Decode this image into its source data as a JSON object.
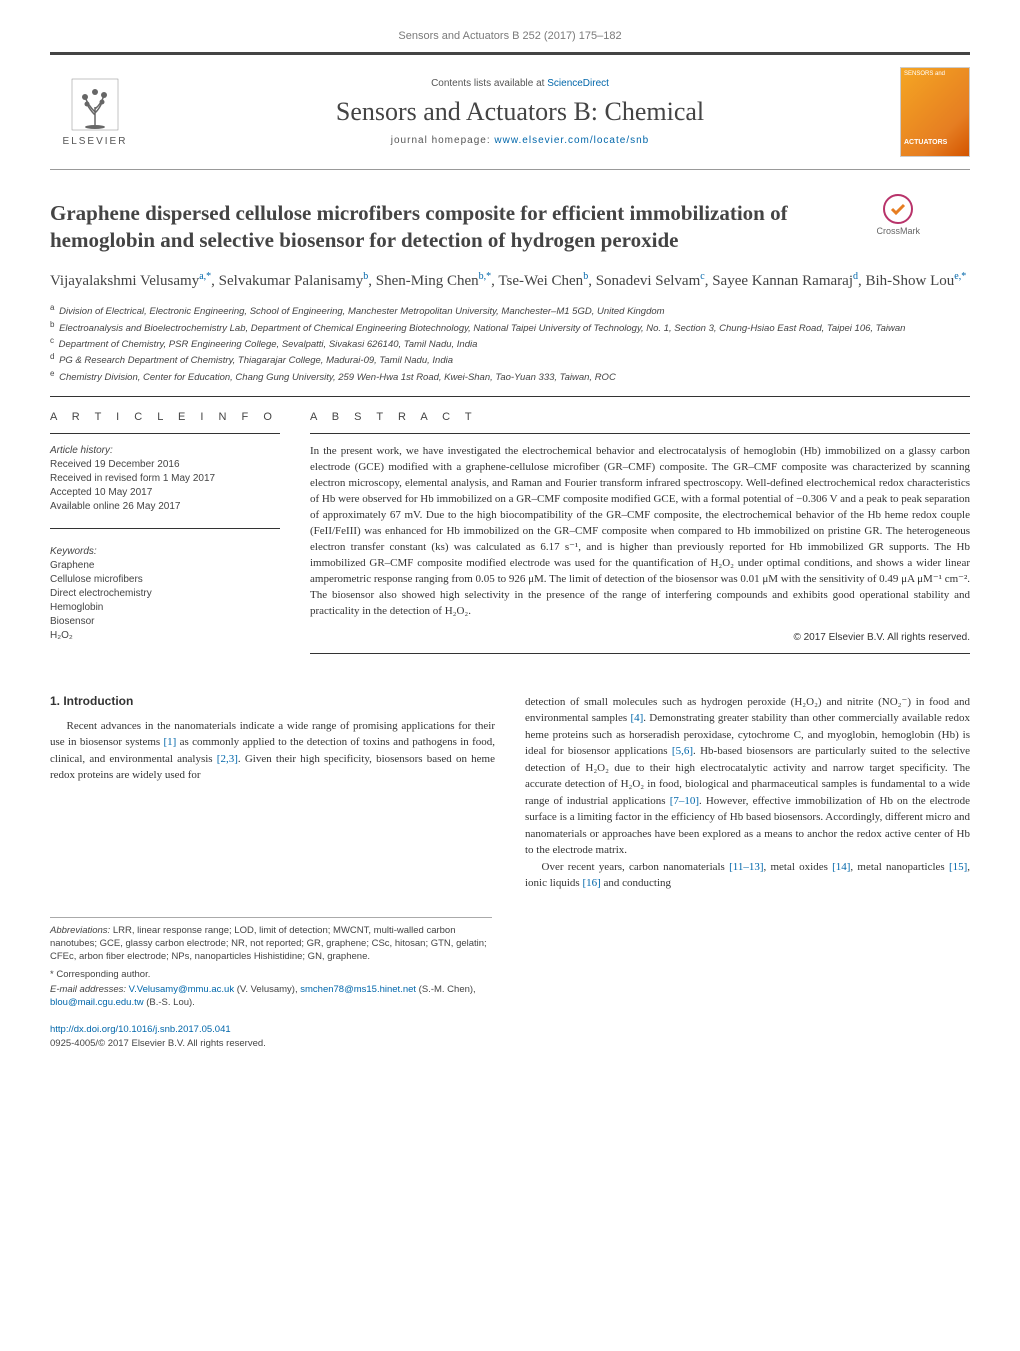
{
  "header": {
    "journal_ref": "Sensors and Actuators B 252 (2017) 175–182",
    "contents_label": "Contents lists available at ",
    "contents_link": "ScienceDirect",
    "journal_title": "Sensors and Actuators B: Chemical",
    "homepage_label": "journal homepage: ",
    "homepage_link": "www.elsevier.com/locate/snb",
    "publisher_name": "ELSEVIER",
    "cover_top_text": "SENSORS and",
    "cover_mid_text": "ACTUATORS",
    "crossmark_label": "CrossMark"
  },
  "article": {
    "title": "Graphene dispersed cellulose microfibers composite for efficient immobilization of hemoglobin and selective biosensor for detection of hydrogen peroxide",
    "authors_html": "Vijayalakshmi Velusamy<sup>a,*</sup>, Selvakumar Palanisamy<sup>b</sup>, Shen-Ming Chen<sup>b,*</sup>, Tse-Wei Chen<sup>b</sup>, Sonadevi Selvam<sup>c</sup>, Sayee Kannan Ramaraj<sup>d</sup>, Bih-Show Lou<sup>e,*</sup>",
    "affiliations": [
      {
        "sup": "a",
        "text": "Division of Electrical, Electronic Engineering, School of Engineering, Manchester Metropolitan University, Manchester–M1 5GD, United Kingdom"
      },
      {
        "sup": "b",
        "text": "Electroanalysis and Bioelectrochemistry Lab, Department of Chemical Engineering Biotechnology, National Taipei University of Technology, No. 1, Section 3, Chung-Hsiao East Road, Taipei 106, Taiwan"
      },
      {
        "sup": "c",
        "text": "Department of Chemistry, PSR Engineering College, Sevalpatti, Sivakasi 626140, Tamil Nadu, India"
      },
      {
        "sup": "d",
        "text": "PG & Research Department of Chemistry, Thiagarajar College, Madurai-09, Tamil Nadu, India"
      },
      {
        "sup": "e",
        "text": "Chemistry Division, Center for Education, Chang Gung University, 259 Wen-Hwa 1st Road, Kwei-Shan, Tao-Yuan 333, Taiwan, ROC"
      }
    ]
  },
  "info": {
    "label": "A R T I C L E   I N F O",
    "history_title": "Article history:",
    "history": [
      "Received 19 December 2016",
      "Received in revised form 1 May 2017",
      "Accepted 10 May 2017",
      "Available online 26 May 2017"
    ],
    "keywords_title": "Keywords:",
    "keywords": [
      "Graphene",
      "Cellulose microfibers",
      "Direct electrochemistry",
      "Hemoglobin",
      "Biosensor",
      "H₂O₂"
    ]
  },
  "abstract": {
    "label": "A B S T R A C T",
    "text": "In the present work, we have investigated the electrochemical behavior and electrocatalysis of hemoglobin (Hb) immobilized on a glassy carbon electrode (GCE) modified with a graphene-cellulose microfiber (GR–CMF) composite. The GR–CMF composite was characterized by scanning electron microscopy, elemental analysis, and Raman and Fourier transform infrared spectroscopy. Well-defined electrochemical redox characteristics of Hb were observed for Hb immobilized on a GR–CMF composite modified GCE, with a formal potential of −0.306 V and a peak to peak separation of approximately 67 mV. Due to the high biocompatibility of the GR–CMF composite, the electrochemical behavior of the Hb heme redox couple (FeII/FeIII) was enhanced for Hb immobilized on the GR–CMF composite when compared to Hb immobilized on pristine GR. The heterogeneous electron transfer constant (ks) was calculated as 6.17 s⁻¹, and is higher than previously reported for Hb immobilized GR supports. The Hb immobilized GR–CMF composite modified electrode was used for the quantification of H₂O₂ under optimal conditions, and shows a wider linear amperometric response ranging from 0.05 to 926 μM. The limit of detection of the biosensor was 0.01 μM with the sensitivity of 0.49 μA μM⁻¹ cm⁻². The biosensor also showed high selectivity in the presence of the range of interfering compounds and exhibits good operational stability and practicality in the detection of H₂O₂.",
    "copyright": "© 2017 Elsevier B.V. All rights reserved."
  },
  "body": {
    "intro_heading": "1. Introduction",
    "col1_p1": "Recent advances in the nanomaterials indicate a wide range of promising applications for their use in biosensor systems [1] as commonly applied to the detection of toxins and pathogens in food, clinical, and environmental analysis [2,3]. Given their high specificity, biosensors based on heme redox proteins are widely used for",
    "col2_p1": "detection of small molecules such as hydrogen peroxide (H₂O₂) and nitrite (NO₂⁻) in food and environmental samples [4]. Demonstrating greater stability than other commercially available redox heme proteins such as horseradish peroxidase, cytochrome C, and myoglobin, hemoglobin (Hb) is ideal for biosensor applications [5,6]. Hb-based biosensors are particularly suited to the selective detection of H₂O₂ due to their high electrocatalytic activity and narrow target specificity. The accurate detection of H₂O₂ in food, biological and pharmaceutical samples is fundamental to a wide range of industrial applications [7–10]. However, effective immobilization of Hb on the electrode surface is a limiting factor in the efficiency of Hb based biosensors. Accordingly, different micro and nanomaterials or approaches have been explored as a means to anchor the redox active center of Hb to the electrode matrix.",
    "col2_p2": "Over recent years, carbon nanomaterials [11–13], metal oxides [14], metal nanoparticles [15], ionic liquids [16] and conducting"
  },
  "footnotes": {
    "abbr_label": "Abbreviations:",
    "abbr_text": " LRR, linear response range; LOD, limit of detection; MWCNT, multi-walled carbon nanotubes; GCE, glassy carbon electrode; NR, not reported; GR, graphene; CSc, hitosan; GTN, gelatin; CFEc, arbon fiber electrode; NPs, nanoparticles Hishistidine; GN, graphene.",
    "corr_label": "* Corresponding author.",
    "email_label": "E-mail addresses: ",
    "emails_html": "V.Velusamy@mmu.ac.uk (V. Velusamy), smchen78@ms15.hinet.net (S.-M. Chen), blou@mail.cgu.edu.tw (B.-S. Lou).",
    "doi": "http://dx.doi.org/10.1016/j.snb.2017.05.041",
    "issn_line": "0925-4005/© 2017 Elsevier B.V. All rights reserved."
  },
  "colors": {
    "link": "#0066aa",
    "text": "#333333",
    "muted": "#444444",
    "rule": "#333333"
  }
}
